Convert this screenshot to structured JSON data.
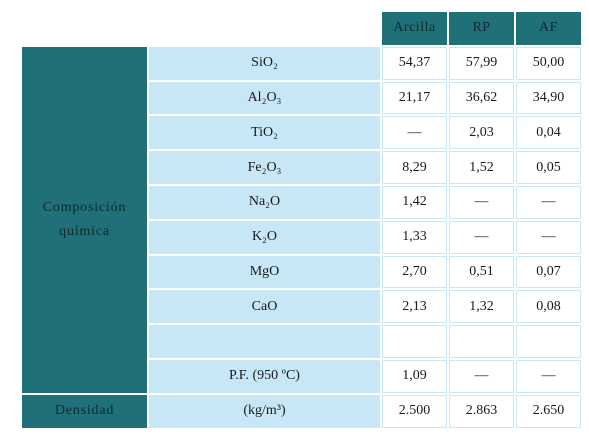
{
  "header": {
    "columns": [
      "Arcilla",
      "RP",
      "AF"
    ]
  },
  "table": {
    "group_label": "Composición química",
    "rows": [
      {
        "label": "SiO₂",
        "values": [
          "54,37",
          "57,99",
          "50,00"
        ]
      },
      {
        "label": "Al₂O₃",
        "values": [
          "21,17",
          "36,62",
          "34,90"
        ]
      },
      {
        "label": "TiO₂",
        "values": [
          "—",
          "2,03",
          "0,04"
        ]
      },
      {
        "label": "Fe₂O₃",
        "values": [
          "8,29",
          "1,52",
          "0,05"
        ]
      },
      {
        "label": "Na₂O",
        "values": [
          "1,42",
          "—",
          "—"
        ]
      },
      {
        "label": "K₂O",
        "values": [
          "1,33",
          "—",
          "—"
        ]
      },
      {
        "label": "MgO",
        "values": [
          "2,70",
          "0,51",
          "0,07"
        ]
      },
      {
        "label": "CaO",
        "values": [
          "2,13",
          "1,32",
          "0,08"
        ]
      },
      {
        "label": "P.F. (950 ºC)",
        "values": [
          "1,09",
          "—",
          "—"
        ]
      }
    ],
    "density": {
      "label": "Densidad",
      "unit": "(kg/m³)",
      "values": [
        "2.500",
        "2.863",
        "2.650"
      ]
    }
  }
}
